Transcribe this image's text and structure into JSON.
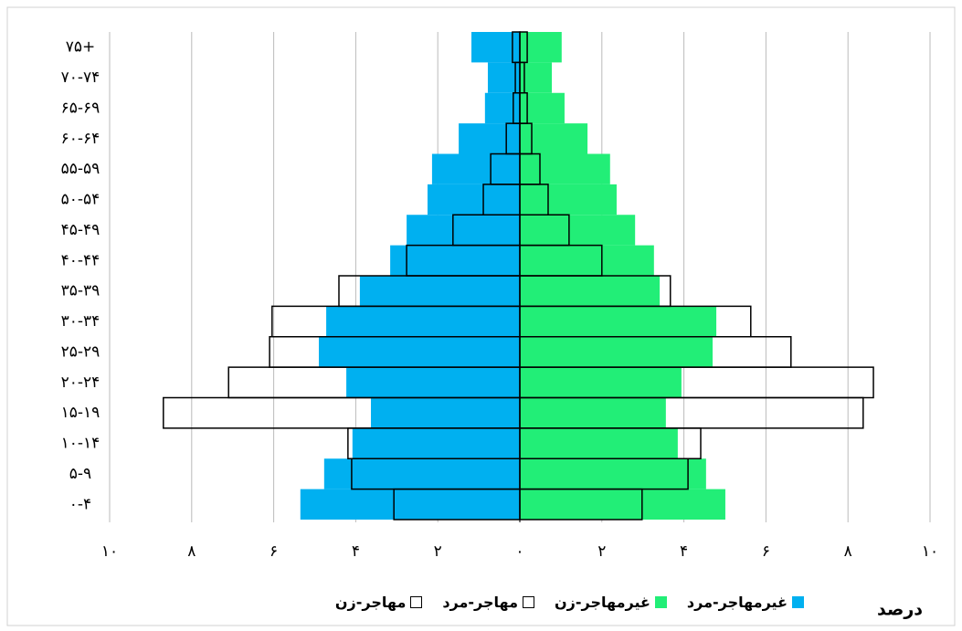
{
  "chart_data": {
    "type": "pyramid",
    "xlabel": "درصد",
    "categories": [
      "۰-۴",
      "۵-۹",
      "۱۰-۱۴",
      "۱۵-۱۹",
      "۲۰-۲۴",
      "۲۵-۲۹",
      "۳۰-۳۴",
      "۳۵-۳۹",
      "۴۰-۴۴",
      "۴۵-۴۹",
      "۵۰-۵۴",
      "۵۵-۵۹",
      "۶۰-۶۴",
      "۶۵-۶۹",
      "۷۰-۷۴",
      "۷۵+"
    ],
    "series": [
      {
        "name": "غیرمهاجر-مرد",
        "color": "#00b0f0",
        "values": [
          -5.35,
          -4.77,
          -4.08,
          -3.63,
          -4.23,
          -4.9,
          -4.72,
          -3.9,
          -3.16,
          -2.76,
          -2.25,
          -2.14,
          -1.49,
          -0.85,
          -0.78,
          -1.18
        ]
      },
      {
        "name": "غیرمهاجر-زن",
        "color": "#22ee77",
        "values": [
          5.01,
          4.54,
          3.85,
          3.56,
          3.94,
          4.7,
          4.79,
          3.41,
          3.27,
          2.81,
          2.36,
          2.2,
          1.65,
          1.09,
          0.78,
          1.02
        ]
      },
      {
        "name": "مهاجر-مرد",
        "color": "none",
        "edgecolor": "#000000",
        "values": [
          -3.07,
          -4.1,
          -4.19,
          -8.69,
          -7.1,
          -6.1,
          -6.04,
          -4.41,
          -2.76,
          -1.63,
          -0.89,
          -0.71,
          -0.33,
          -0.16,
          -0.11,
          -0.18
        ]
      },
      {
        "name": "مهاجر-زن",
        "color": "none",
        "edgecolor": "#000000",
        "values": [
          2.98,
          4.1,
          4.41,
          8.37,
          8.62,
          6.61,
          5.63,
          3.67,
          2.0,
          1.2,
          0.69,
          0.49,
          0.29,
          0.18,
          0.11,
          0.18
        ]
      }
    ],
    "xlim": [
      -10,
      10
    ],
    "xticks": [
      {
        "value": -10,
        "label": "۱۰"
      },
      {
        "value": -8,
        "label": "۸"
      },
      {
        "value": -6,
        "label": "۶"
      },
      {
        "value": -4,
        "label": "۴"
      },
      {
        "value": -2,
        "label": "۲"
      },
      {
        "value": 0,
        "label": "۰"
      },
      {
        "value": 2,
        "label": "۲"
      },
      {
        "value": 4,
        "label": "۴"
      },
      {
        "value": 6,
        "label": "۶"
      },
      {
        "value": 8,
        "label": "۸"
      },
      {
        "value": 10,
        "label": "۱۰"
      }
    ],
    "grid": true
  }
}
